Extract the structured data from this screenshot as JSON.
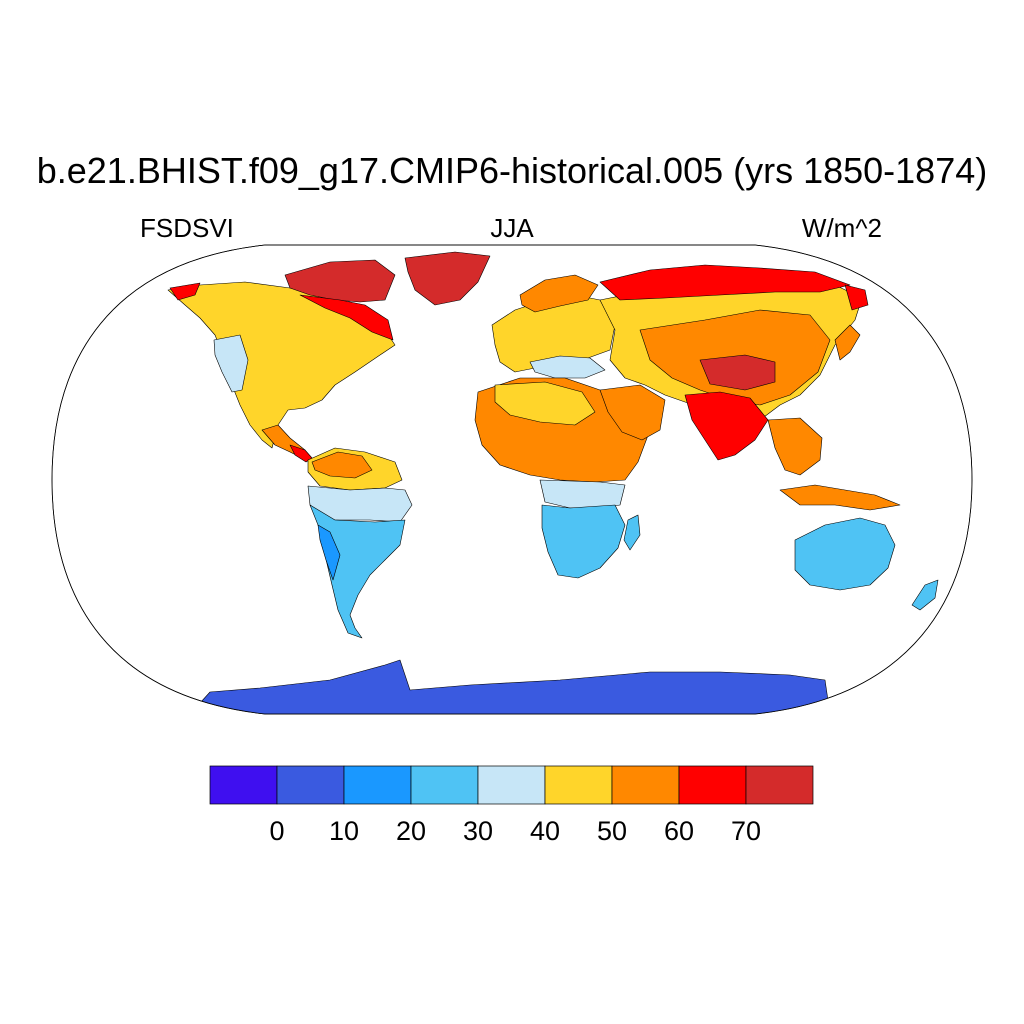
{
  "title": "b.e21.BHIST.f09_g17.CMIP6-historical.005 (yrs 1850-1874)",
  "variable": "FSDSVI",
  "season": "JJA",
  "units": "W/m^2",
  "colorbar": {
    "colors": [
      "#3f0ff0",
      "#3a5ae0",
      "#1a98ff",
      "#4fc3f4",
      "#c7e6f7",
      "#ffd52a",
      "#ff8800",
      "#ff0000",
      "#d42b2b"
    ],
    "labels": [
      "0",
      "10",
      "20",
      "30",
      "40",
      "50",
      "60",
      "70"
    ]
  }
}
